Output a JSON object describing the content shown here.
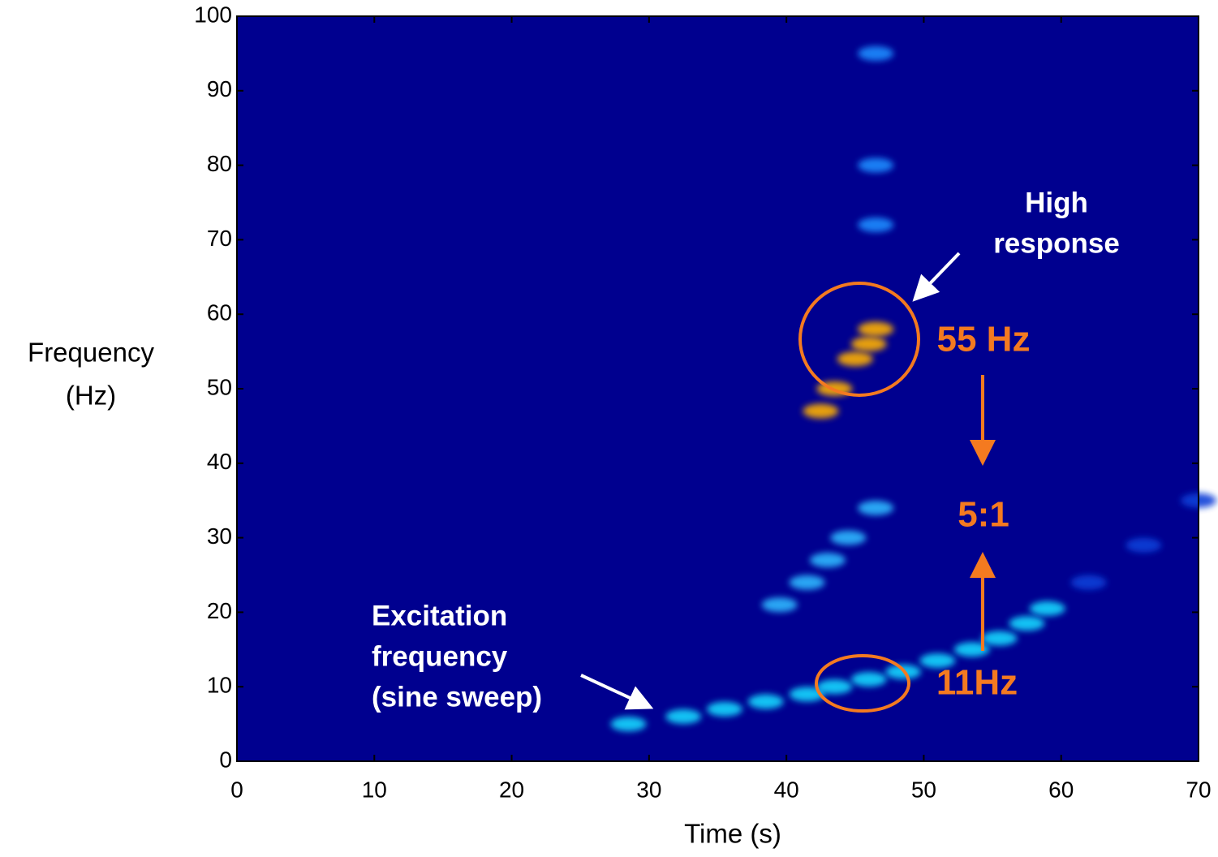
{
  "chart_data": {
    "type": "spectrogram",
    "xlabel": "Time (s)",
    "ylabel": [
      "Frequency",
      "(Hz)"
    ],
    "xlim": [
      0,
      70
    ],
    "ylim": [
      0,
      100
    ],
    "xticks": [
      0,
      10,
      20,
      30,
      40,
      50,
      60,
      70
    ],
    "yticks": [
      0,
      10,
      20,
      30,
      40,
      50,
      60,
      70,
      80,
      90,
      100
    ],
    "background": "#00008f",
    "series": [
      {
        "color": "#19d8ff",
        "x": [
          28.5,
          32.5,
          35.5,
          38.5,
          41.5,
          43.5,
          46,
          48.5,
          51,
          53.5,
          55.5,
          57.5,
          59
        ],
        "y": [
          5,
          6,
          7,
          8,
          9,
          10,
          11,
          12,
          13.5,
          15,
          16.5,
          18.5,
          20.5
        ]
      },
      {
        "color": "#2fb8ff",
        "x": [
          39.5,
          41.5,
          43,
          44.5,
          46.5
        ],
        "y": [
          21,
          24,
          27,
          30,
          34
        ]
      },
      {
        "color": "#ffb000",
        "x": [
          42.5,
          43.5,
          45,
          46,
          46.5
        ],
        "y": [
          47,
          50,
          54,
          56,
          58
        ]
      },
      {
        "color": "#1a8cff",
        "x": [
          46.5,
          46.5,
          46.5
        ],
        "y": [
          72,
          80,
          95
        ]
      },
      {
        "color": "#1040d8",
        "x": [
          62,
          66,
          70
        ],
        "y": [
          24,
          29,
          35
        ]
      }
    ],
    "annotations": {
      "high_response": [
        "High",
        "response"
      ],
      "f55": "55 Hz",
      "ratio": "5:1",
      "f11": "11Hz",
      "excitation": [
        "Excitation",
        "frequency",
        "(sine sweep)"
      ]
    }
  }
}
